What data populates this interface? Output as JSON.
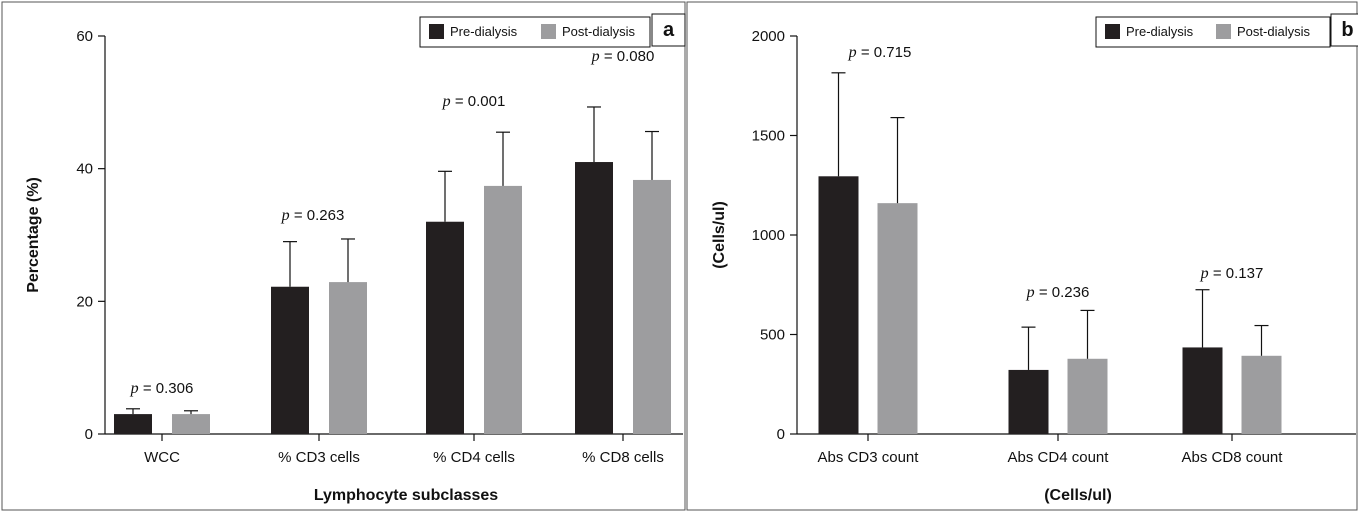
{
  "colors": {
    "pre": "#231f20",
    "post": "#9d9d9f"
  },
  "chart_data": [
    {
      "type": "bar",
      "panel_label": "a",
      "title": "",
      "xlabel": "Lymphocyte subclasses",
      "ylabel": "Percentage (%)",
      "ylim": [
        0,
        60
      ],
      "yticks": [
        0,
        20,
        40,
        60
      ],
      "categories": [
        "WCC",
        "% CD3 cells",
        "% CD4 cells",
        "% CD8 cells"
      ],
      "series": [
        {
          "name": "Pre-dialysis",
          "values": [
            3.0,
            22.2,
            32.0,
            41.0
          ],
          "errors": [
            0.8,
            6.8,
            7.6,
            8.3
          ]
        },
        {
          "name": "Post-dialysis",
          "values": [
            3.0,
            22.9,
            37.4,
            38.3
          ],
          "errors": [
            0.5,
            6.5,
            8.1,
            7.3
          ]
        }
      ],
      "annotations": [
        {
          "label": "p",
          "text": " = 0.306"
        },
        {
          "label": "p",
          "text": " = 0.263"
        },
        {
          "label": "p",
          "text": " = 0.001"
        },
        {
          "label": "p",
          "text": " = 0.080"
        }
      ],
      "legend_position": "top-right",
      "grid": false
    },
    {
      "type": "bar",
      "panel_label": "b",
      "title": "",
      "xlabel": "(Cells/ul)",
      "ylabel": "(Cells/ul)",
      "ylim": [
        0,
        2000
      ],
      "yticks": [
        0,
        500,
        1000,
        1500,
        2000
      ],
      "categories": [
        "Abs CD3 count",
        "Abs CD4 count",
        "Abs CD8 count"
      ],
      "series": [
        {
          "name": "Pre-dialysis",
          "values": [
            1295,
            322,
            435
          ],
          "errors": [
            520,
            215,
            290
          ]
        },
        {
          "name": "Post-dialysis",
          "values": [
            1160,
            378,
            393
          ],
          "errors": [
            430,
            243,
            152
          ]
        }
      ],
      "annotations": [
        {
          "label": "p",
          "text": " = 0.715"
        },
        {
          "label": "p",
          "text": " = 0.236"
        },
        {
          "label": "p",
          "text": " = 0.137"
        }
      ],
      "legend_position": "top-right",
      "grid": false
    }
  ]
}
